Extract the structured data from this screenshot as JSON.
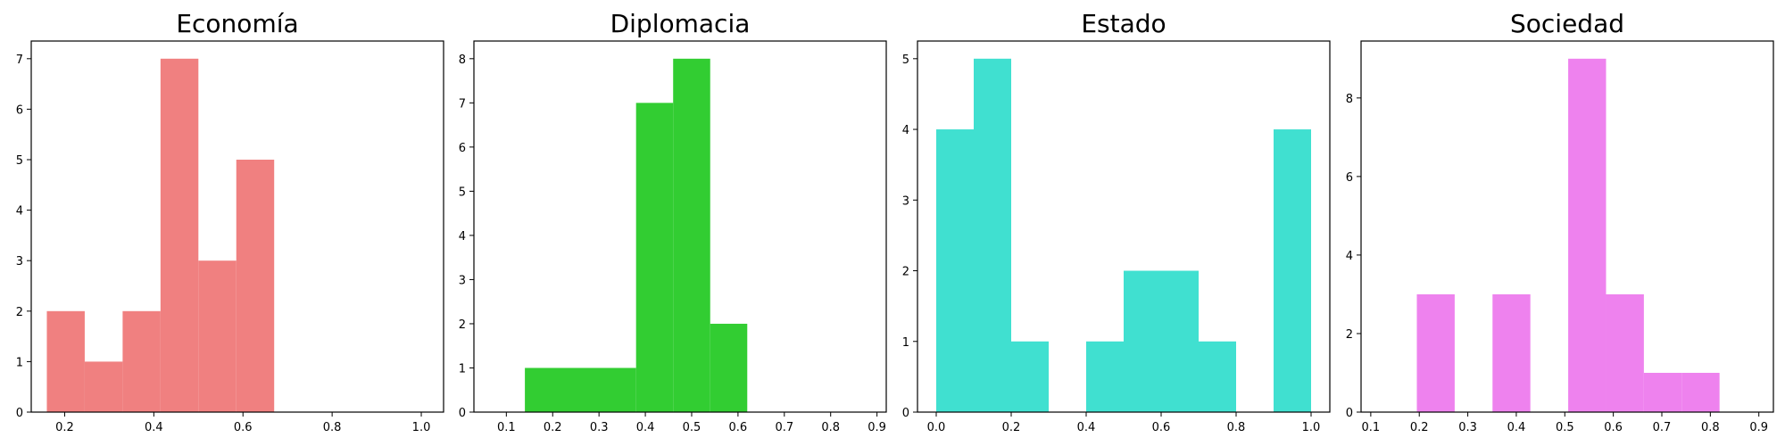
{
  "chart_data": [
    {
      "type": "bar",
      "title": "Economía",
      "color": "#f08080",
      "bins": [
        {
          "x0": 0.16,
          "x1": 0.245,
          "count": 2
        },
        {
          "x0": 0.245,
          "x1": 0.33,
          "count": 1
        },
        {
          "x0": 0.33,
          "x1": 0.415,
          "count": 2
        },
        {
          "x0": 0.415,
          "x1": 0.5,
          "count": 7
        },
        {
          "x0": 0.5,
          "x1": 0.585,
          "count": 3
        },
        {
          "x0": 0.585,
          "x1": 0.67,
          "count": 5
        }
      ],
      "xlim": [
        0.125,
        1.05
      ],
      "ylim": [
        0,
        7.35
      ],
      "xticks": [
        0.2,
        0.4,
        0.6,
        0.8,
        1.0
      ],
      "xtick_labels": [
        "0.2",
        "0.4",
        "0.6",
        "0.8",
        "1.0"
      ],
      "yticks": [
        0,
        1,
        2,
        3,
        4,
        5,
        6,
        7
      ],
      "ytick_labels": [
        "0",
        "1",
        "2",
        "3",
        "4",
        "5",
        "6",
        "7"
      ],
      "grid": false
    },
    {
      "type": "bar",
      "title": "Diplomacia",
      "color": "#32cd32",
      "bins": [
        {
          "x0": 0.14,
          "x1": 0.38,
          "count": 1
        },
        {
          "x0": 0.38,
          "x1": 0.46,
          "count": 7
        },
        {
          "x0": 0.46,
          "x1": 0.54,
          "count": 8
        },
        {
          "x0": 0.54,
          "x1": 0.62,
          "count": 2
        }
      ],
      "xlim": [
        0.03,
        0.92
      ],
      "ylim": [
        0,
        8.4
      ],
      "xticks": [
        0.1,
        0.2,
        0.3,
        0.4,
        0.5,
        0.6,
        0.7,
        0.8,
        0.9
      ],
      "xtick_labels": [
        "0.1",
        "0.2",
        "0.3",
        "0.4",
        "0.5",
        "0.6",
        "0.7",
        "0.8",
        "0.9"
      ],
      "yticks": [
        0,
        1,
        2,
        3,
        4,
        5,
        6,
        7,
        8
      ],
      "ytick_labels": [
        "0",
        "1",
        "2",
        "3",
        "4",
        "5",
        "6",
        "7",
        "8"
      ],
      "grid": false
    },
    {
      "type": "bar",
      "title": "Estado",
      "color": "#40e0d0",
      "bins": [
        {
          "x0": 0.0,
          "x1": 0.1,
          "count": 4
        },
        {
          "x0": 0.1,
          "x1": 0.2,
          "count": 5
        },
        {
          "x0": 0.2,
          "x1": 0.3,
          "count": 1
        },
        {
          "x0": 0.4,
          "x1": 0.5,
          "count": 1
        },
        {
          "x0": 0.5,
          "x1": 0.6,
          "count": 2
        },
        {
          "x0": 0.6,
          "x1": 0.7,
          "count": 2
        },
        {
          "x0": 0.7,
          "x1": 0.8,
          "count": 1
        },
        {
          "x0": 0.9,
          "x1": 1.0,
          "count": 4
        }
      ],
      "xlim": [
        -0.05,
        1.05
      ],
      "ylim": [
        0,
        5.25
      ],
      "xticks": [
        0.0,
        0.2,
        0.4,
        0.6,
        0.8,
        1.0
      ],
      "xtick_labels": [
        "0.0",
        "0.2",
        "0.4",
        "0.6",
        "0.8",
        "1.0"
      ],
      "yticks": [
        0,
        1,
        2,
        3,
        4,
        5
      ],
      "ytick_labels": [
        "0",
        "1",
        "2",
        "3",
        "4",
        "5"
      ],
      "grid": false
    },
    {
      "type": "bar",
      "title": "Sociedad",
      "color": "#ee82ee",
      "bins": [
        {
          "x0": 0.195,
          "x1": 0.273,
          "count": 3
        },
        {
          "x0": 0.351,
          "x1": 0.429,
          "count": 3
        },
        {
          "x0": 0.507,
          "x1": 0.585,
          "count": 9
        },
        {
          "x0": 0.585,
          "x1": 0.663,
          "count": 3
        },
        {
          "x0": 0.663,
          "x1": 0.741,
          "count": 1
        },
        {
          "x0": 0.741,
          "x1": 0.819,
          "count": 1
        }
      ],
      "xlim": [
        0.08,
        0.93
      ],
      "ylim": [
        0,
        9.45
      ],
      "xticks": [
        0.1,
        0.2,
        0.3,
        0.4,
        0.5,
        0.6,
        0.7,
        0.8,
        0.9
      ],
      "xtick_labels": [
        "0.1",
        "0.2",
        "0.3",
        "0.4",
        "0.5",
        "0.6",
        "0.7",
        "0.8",
        "0.9"
      ],
      "yticks": [
        0,
        2,
        4,
        6,
        8
      ],
      "ytick_labels": [
        "0",
        "2",
        "4",
        "6",
        "8"
      ],
      "grid": false
    }
  ]
}
